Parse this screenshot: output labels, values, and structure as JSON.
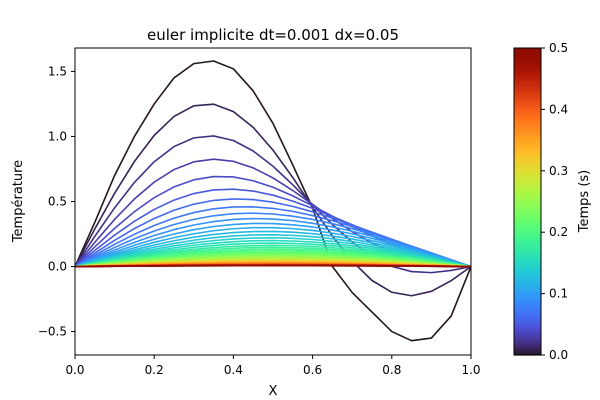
{
  "chart_data": {
    "type": "line",
    "title": "euler implicite dt=0.001 dx=0.05",
    "xlabel": "X",
    "ylabel": "Température",
    "xlim": [
      0,
      1
    ],
    "ylim": [
      -0.68,
      1.68
    ],
    "xticks": [
      0.0,
      0.2,
      0.4,
      0.6,
      0.8,
      1.0
    ],
    "xtick_labels": [
      "0.0",
      "0.2",
      "0.4",
      "0.6",
      "0.8",
      "1.0"
    ],
    "yticks": [
      -0.5,
      0.0,
      0.5,
      1.0,
      1.5
    ],
    "ytick_labels": [
      "−0.5",
      "0.0",
      "0.5",
      "1.0",
      "1.5"
    ],
    "grid": false,
    "legend": "none",
    "x": [
      0.0,
      0.05,
      0.1,
      0.15,
      0.2,
      0.25,
      0.3,
      0.35,
      0.4,
      0.45,
      0.5,
      0.55,
      0.6,
      0.65,
      0.7,
      0.75,
      0.8,
      0.85,
      0.9,
      0.95,
      1.0
    ],
    "series_description": "one curve per saved time step, colored by time with the turbo colormap; amplitude decays from the initial profile to zero",
    "initial_profile": {
      "x_label_time": 0.0,
      "values": [
        0.0,
        0.34,
        0.7,
        1.0,
        1.25,
        1.45,
        1.56,
        1.58,
        1.52,
        1.35,
        1.1,
        0.78,
        0.45,
        0.0,
        -0.2,
        -0.35,
        -0.5,
        -0.57,
        -0.55,
        -0.38,
        0.0
      ]
    },
    "time_range": [
      0.0,
      0.5
    ],
    "n_curves": 50,
    "colorbar": {
      "label": "Temps (s)",
      "colormap": "turbo",
      "range": [
        0.0,
        0.5
      ],
      "ticks": [
        0.0,
        0.1,
        0.2,
        0.3,
        0.4,
        0.5
      ],
      "tick_labels": [
        "0.0",
        "0.1",
        "0.2",
        "0.3",
        "0.4",
        "0.5"
      ]
    }
  }
}
